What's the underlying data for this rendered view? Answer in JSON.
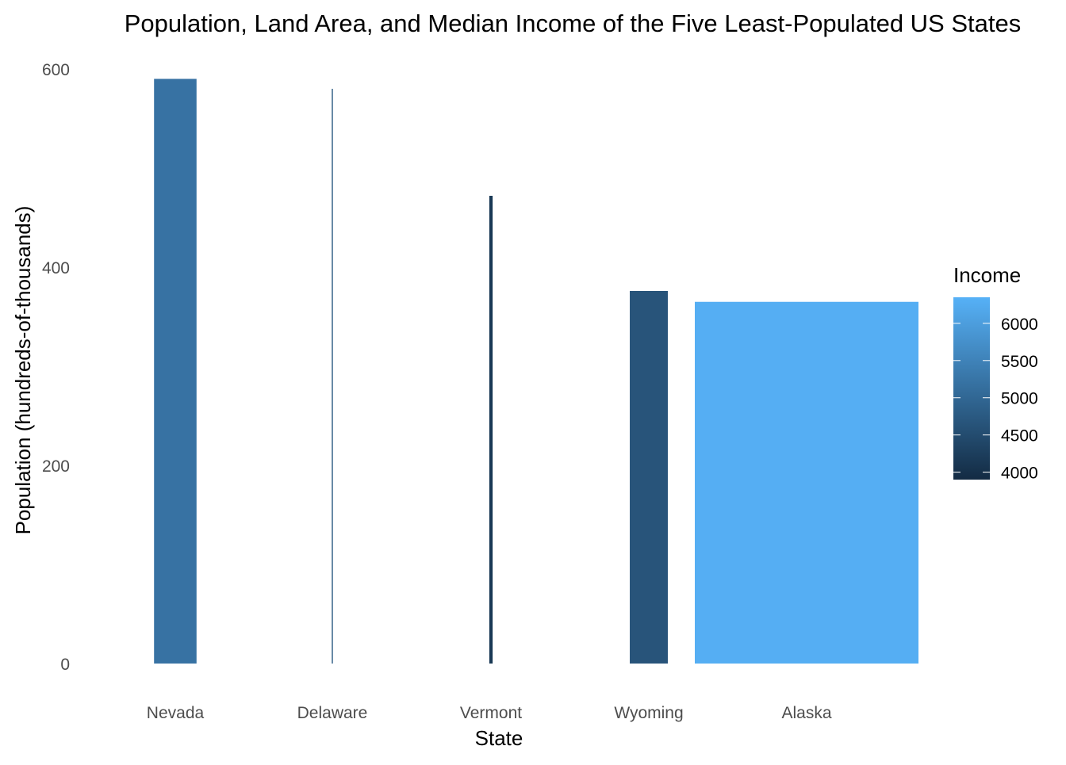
{
  "chart_data": {
    "type": "bar",
    "title": "Population, Land Area, and Median Income of the Five Least-Populated US States",
    "xlabel": "State",
    "ylabel": "Population (hundreds-of-thousands)",
    "ylim": [
      0,
      600
    ],
    "y_ticks": [
      "0",
      "200",
      "400",
      "600"
    ],
    "grid": false,
    "categories": [
      "Nevada",
      "Delaware",
      "Vermont",
      "Wyoming",
      "Alaska"
    ],
    "values": [
      590,
      580,
      472,
      376,
      365
    ],
    "bar_width_encoding": "land area (relative)",
    "relative_widths": [
      0.19,
      0.005,
      0.015,
      0.17,
      1.0
    ],
    "fill_values": [
      5200,
      4750,
      4150,
      4650,
      6300
    ],
    "legend": {
      "title": "Income",
      "placement": "right",
      "ticks": [
        "6000",
        "5500",
        "5000",
        "4500",
        "4000"
      ],
      "range": [
        3900,
        6350
      ],
      "colors": {
        "low": "#132B43",
        "high": "#56B1F7"
      }
    }
  }
}
